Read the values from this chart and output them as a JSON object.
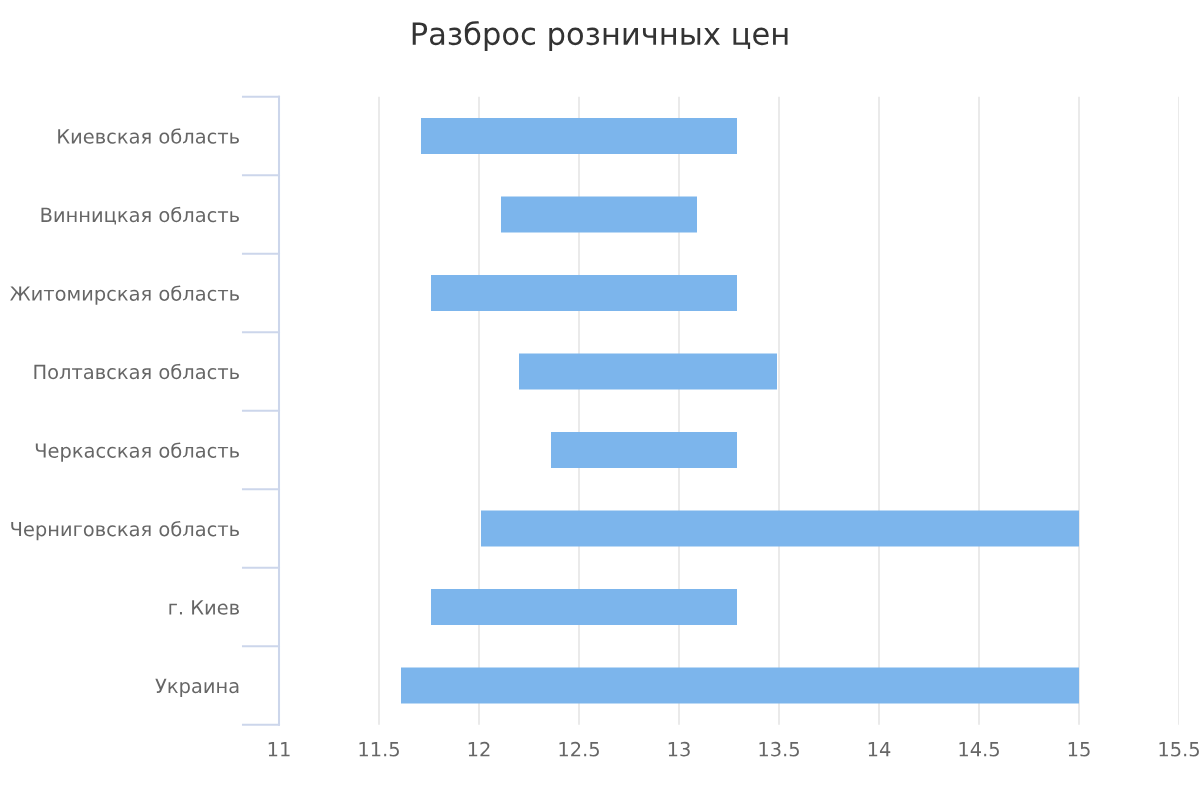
{
  "chart_data": {
    "type": "bar",
    "orientation": "horizontal",
    "title": "Разброс розничных цен",
    "categories": [
      "Киевская область",
      "Винницкая область",
      "Житомирская область",
      "Полтавская область",
      "Черкасская область",
      "Черниговская область",
      "г. Киев",
      "Украина"
    ],
    "base": [
      11.71,
      12.11,
      11.76,
      12.2,
      12.36,
      12.01,
      11.76,
      11.61
    ],
    "values": [
      1.58,
      0.98,
      1.53,
      1.29,
      0.93,
      2.99,
      1.53,
      3.39
    ],
    "color": "#7cb5ec",
    "xlim": [
      11,
      15.5
    ],
    "xticks": [
      11,
      11.5,
      12,
      12.5,
      13,
      13.5,
      14,
      14.5,
      15,
      15.5
    ],
    "grid": "x",
    "legend": false
  }
}
